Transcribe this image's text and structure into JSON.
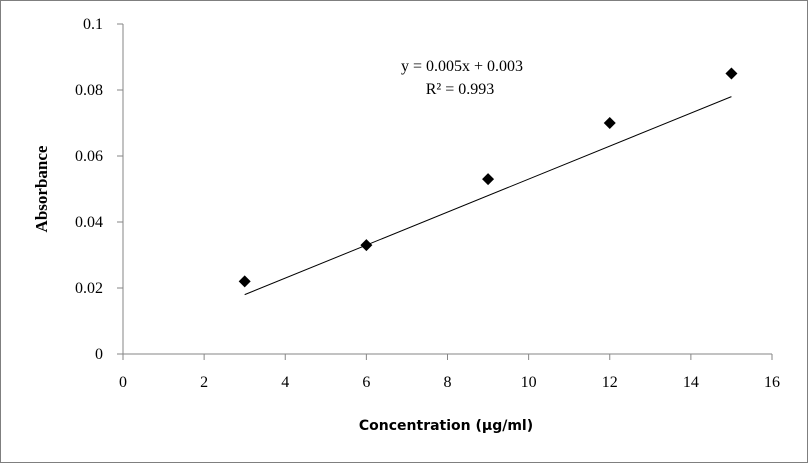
{
  "chart_data": {
    "type": "scatter",
    "title": "",
    "xlabel": "Concentration (μg/ml)",
    "ylabel": "Absorbance",
    "xlim": [
      0,
      16
    ],
    "ylim": [
      0,
      0.1
    ],
    "x_ticks": [
      "0",
      "2",
      "4",
      "6",
      "8",
      "10",
      "12",
      "14",
      "16"
    ],
    "y_ticks": [
      "0",
      "0.02",
      "0.04",
      "0.06",
      "0.08",
      "0.1"
    ],
    "grid": false,
    "legend": "none",
    "series": [
      {
        "x": [
          3,
          6,
          9,
          12,
          15
        ],
        "y": [
          0.022,
          0.033,
          0.053,
          0.07,
          0.085
        ],
        "marker": "diamond",
        "color": "#000000"
      }
    ],
    "trendline": {
      "type": "linear",
      "slope": 0.005,
      "intercept": 0.003,
      "x_range": [
        3,
        15
      ],
      "equation": "y = 0.005x + 0.003",
      "r2_label": "R² = 0.993"
    }
  }
}
